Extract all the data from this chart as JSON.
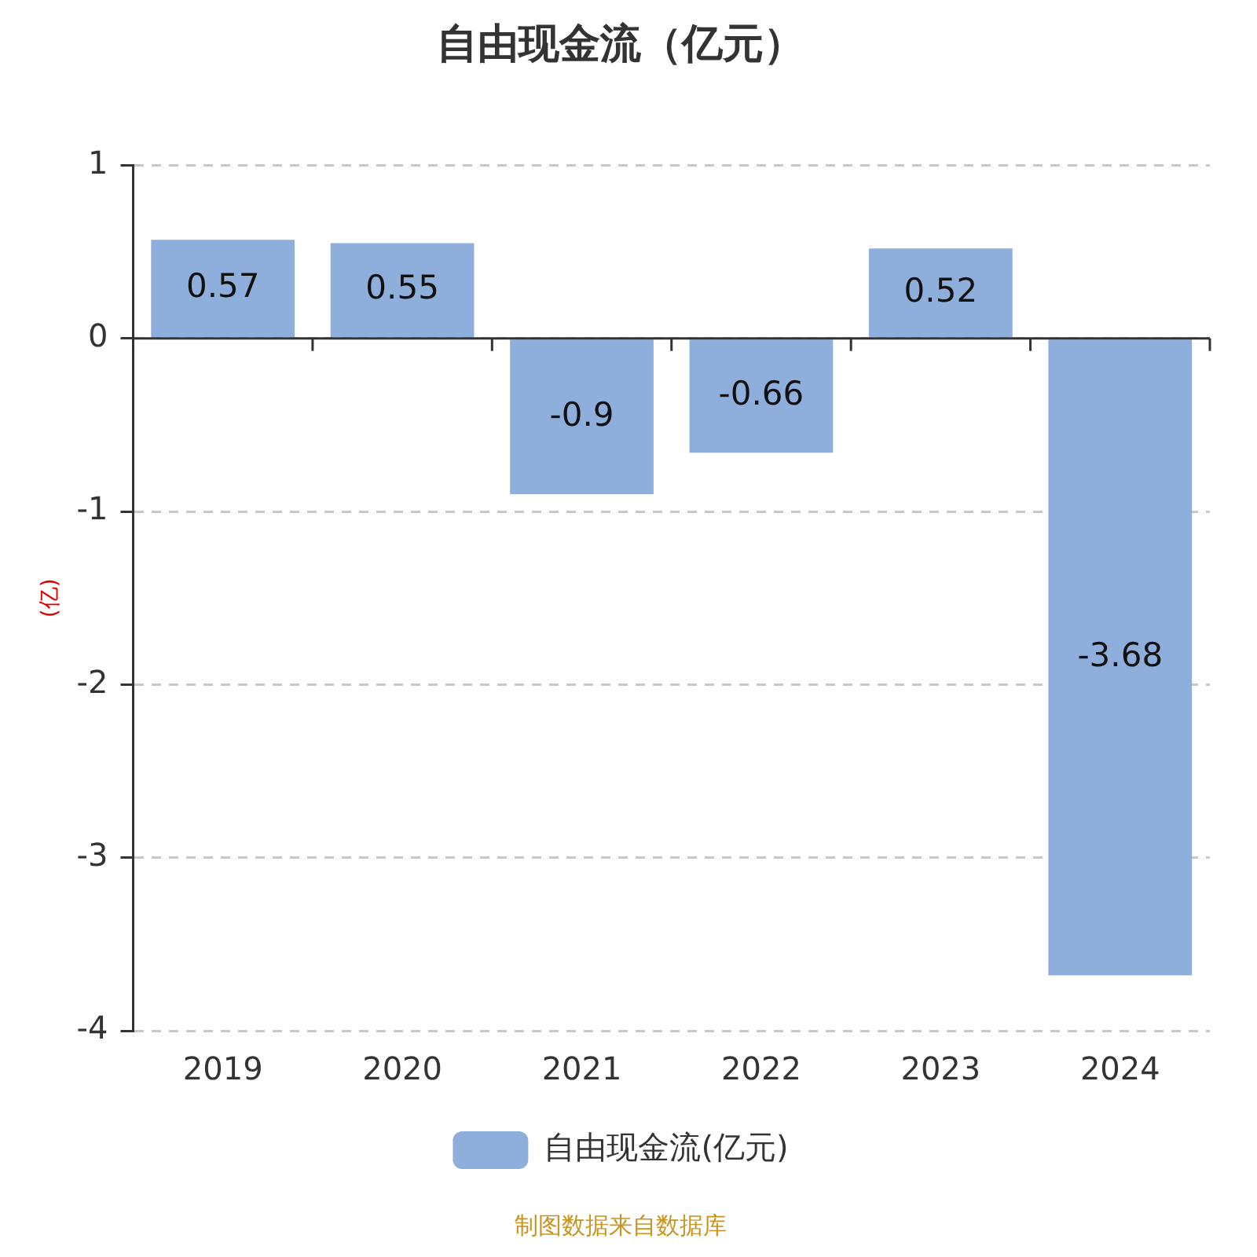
{
  "chart_data": {
    "type": "bar",
    "title": "自由现金流（亿元）",
    "ylabel": "(亿)",
    "categories": [
      "2019",
      "2020",
      "2021",
      "2022",
      "2023",
      "2024"
    ],
    "series": [
      {
        "name": "自由现金流(亿元)",
        "color": "#8eaedb",
        "values": [
          0.57,
          0.55,
          -0.9,
          -0.66,
          0.52,
          -3.68
        ]
      }
    ],
    "ylim": [
      -4,
      1
    ],
    "yticks": [
      -4,
      -3,
      -2,
      -1,
      0,
      1
    ],
    "grid": "y",
    "legend": "bottom",
    "data_labels": true,
    "annotations": [
      "制图数据来自数据库"
    ]
  }
}
